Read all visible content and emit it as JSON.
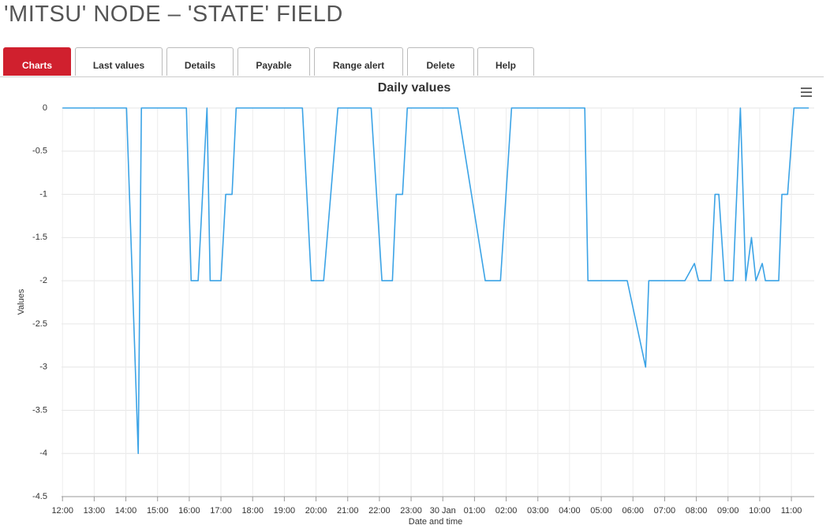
{
  "header": {
    "title": "'MITSU' NODE – 'STATE' FIELD"
  },
  "tabs": [
    "Charts",
    "Last values",
    "Details",
    "Payable",
    "Range alert",
    "Delete",
    "Help"
  ],
  "chart_data": {
    "type": "line",
    "title": "Daily values",
    "y_label": "Values",
    "x_label": "Date and time",
    "color": "#3ba3e6",
    "grid": true,
    "xlim": [
      11.97,
      35.72
    ],
    "ylim": [
      -4.5,
      0
    ],
    "yticks": [
      0,
      -0.5,
      -1,
      -1.5,
      -2,
      -2.5,
      -3,
      -3.5,
      -4,
      -4.5
    ],
    "xticks": [
      {
        "value": 12,
        "label": "12:00"
      },
      {
        "value": 13,
        "label": "13:00"
      },
      {
        "value": 14,
        "label": "14:00"
      },
      {
        "value": 15,
        "label": "15:00"
      },
      {
        "value": 16,
        "label": "16:00"
      },
      {
        "value": 17,
        "label": "17:00"
      },
      {
        "value": 18,
        "label": "18:00"
      },
      {
        "value": 19,
        "label": "19:00"
      },
      {
        "value": 20,
        "label": "20:00"
      },
      {
        "value": 21,
        "label": "21:00"
      },
      {
        "value": 22,
        "label": "22:00"
      },
      {
        "value": 23,
        "label": "23:00"
      },
      {
        "value": 24,
        "label": "30 Jan"
      },
      {
        "value": 25,
        "label": "01:00"
      },
      {
        "value": 26,
        "label": "02:00"
      },
      {
        "value": 27,
        "label": "03:00"
      },
      {
        "value": 28,
        "label": "04:00"
      },
      {
        "value": 29,
        "label": "05:00"
      },
      {
        "value": 30,
        "label": "06:00"
      },
      {
        "value": 31,
        "label": "07:00"
      },
      {
        "value": 32,
        "label": "08:00"
      },
      {
        "value": 33,
        "label": "09:00"
      },
      {
        "value": 34,
        "label": "10:00"
      },
      {
        "value": 35,
        "label": "11:00"
      }
    ],
    "x": [
      12.0,
      14.02,
      14.39,
      14.49,
      15.91,
      16.06,
      16.28,
      16.56,
      16.66,
      17.0,
      17.15,
      17.35,
      17.48,
      19.57,
      19.85,
      20.24,
      20.69,
      21.74,
      22.08,
      22.41,
      22.53,
      22.73,
      22.88,
      24.47,
      25.34,
      25.82,
      26.17,
      28.48,
      28.58,
      29.82,
      30.4,
      30.5,
      31.64,
      31.94,
      32.07,
      32.46,
      32.59,
      32.71,
      32.89,
      33.16,
      33.39,
      33.56,
      33.74,
      33.88,
      34.08,
      34.18,
      34.6,
      34.7,
      34.88,
      35.08,
      35.55
    ],
    "values": [
      0,
      0,
      -4,
      0,
      0,
      -2,
      -2,
      0,
      -2,
      -2,
      -1,
      -1,
      0,
      0,
      -2,
      -2,
      0,
      0,
      -2,
      -2,
      -1,
      -1,
      0,
      0,
      -2,
      -2,
      0,
      0,
      -2,
      -2,
      -3,
      -2,
      -2,
      -1.8,
      -2,
      -2,
      -1,
      -1,
      -2,
      -2,
      0,
      -2,
      -1.5,
      -2,
      -1.8,
      -2,
      -2,
      -1,
      -1,
      0,
      0
    ]
  }
}
